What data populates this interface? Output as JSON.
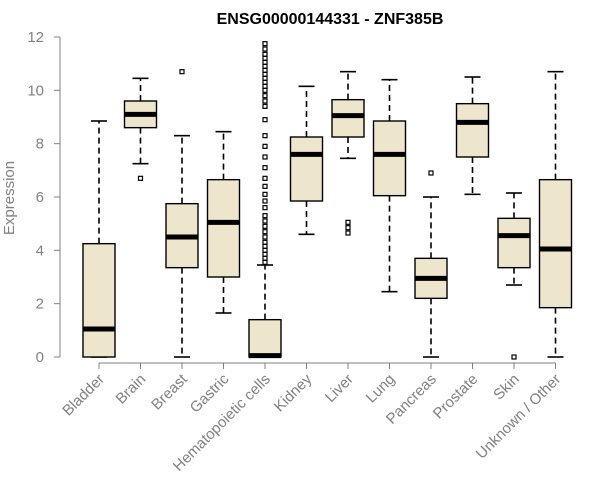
{
  "chart_data": {
    "type": "boxplot",
    "title": "ENSG00000144331 - ZNF385B",
    "xlabel": "",
    "ylabel": "Expression",
    "ylim": [
      0,
      12
    ],
    "yticks": [
      0,
      2,
      4,
      6,
      8,
      10,
      12
    ],
    "categories": [
      "Bladder",
      "Brain",
      "Breast",
      "Gastric",
      "Hematopoietic cells",
      "Kidney",
      "Liver",
      "Lung",
      "Pancreas",
      "Prostate",
      "Skin",
      "Unknown / Other"
    ],
    "boxes": [
      {
        "category": "Bladder",
        "min": 0,
        "q1": 0,
        "median": 1.05,
        "q3": 4.25,
        "max": 8.85,
        "outliers": []
      },
      {
        "category": "Brain",
        "min": 7.25,
        "q1": 8.6,
        "median": 9.1,
        "q3": 9.6,
        "max": 10.45,
        "outliers": [
          6.7
        ]
      },
      {
        "category": "Breast",
        "min": 0,
        "q1": 3.35,
        "median": 4.5,
        "q3": 5.75,
        "max": 8.3,
        "outliers": [
          10.7
        ]
      },
      {
        "category": "Gastric",
        "min": 1.65,
        "q1": 3.0,
        "median": 5.05,
        "q3": 6.65,
        "max": 8.45,
        "outliers": []
      },
      {
        "category": "Hematopoietic cells",
        "min": 0,
        "q1": 0,
        "median": 0.05,
        "q3": 1.4,
        "max": 3.45,
        "outliers": [
          3.55,
          3.7,
          3.85,
          4.0,
          4.15,
          4.3,
          4.5,
          4.7,
          4.9,
          5.1,
          5.3,
          5.6,
          5.85,
          6.1,
          6.4,
          6.7,
          7.1,
          7.5,
          7.9,
          8.3,
          8.9,
          9.4,
          9.6,
          9.8,
          10.0,
          10.15,
          10.3,
          10.45,
          10.6,
          10.75,
          10.9,
          11.05,
          11.2,
          11.35,
          11.55,
          11.75
        ]
      },
      {
        "category": "Kidney",
        "min": 4.6,
        "q1": 5.85,
        "median": 7.6,
        "q3": 8.25,
        "max": 10.15,
        "outliers": []
      },
      {
        "category": "Liver",
        "min": 7.45,
        "q1": 8.25,
        "median": 9.05,
        "q3": 9.65,
        "max": 10.7,
        "outliers": [
          5.05,
          4.85,
          4.65
        ]
      },
      {
        "category": "Lung",
        "min": 2.45,
        "q1": 6.05,
        "median": 7.6,
        "q3": 8.85,
        "max": 10.4,
        "outliers": []
      },
      {
        "category": "Pancreas",
        "min": 0,
        "q1": 2.2,
        "median": 2.95,
        "q3": 3.7,
        "max": 6.0,
        "outliers": [
          6.9
        ]
      },
      {
        "category": "Prostate",
        "min": 6.1,
        "q1": 7.5,
        "median": 8.8,
        "q3": 9.5,
        "max": 10.5,
        "outliers": []
      },
      {
        "category": "Skin",
        "min": 2.7,
        "q1": 3.35,
        "median": 4.55,
        "q3": 5.2,
        "max": 6.15,
        "outliers": [
          0
        ]
      },
      {
        "category": "Unknown / Other",
        "min": 0,
        "q1": 1.85,
        "median": 4.05,
        "q3": 6.65,
        "max": 10.7,
        "outliers": []
      }
    ],
    "colors": {
      "box_fill": "#ede6cc",
      "box_stroke": "#000000",
      "median": "#000000",
      "axis": "#808080"
    },
    "grid": false,
    "legend": "none"
  }
}
